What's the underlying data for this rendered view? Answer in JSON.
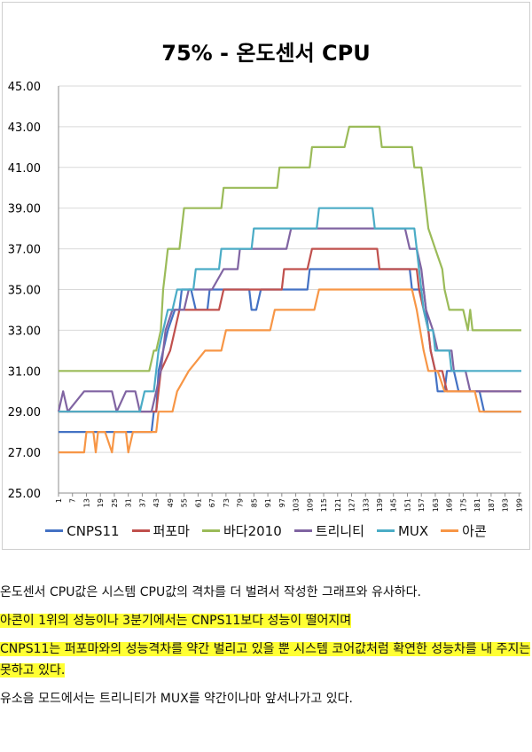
{
  "chart_data": {
    "type": "line",
    "title": "75% - 온도센서 CPU",
    "ylim": [
      25,
      45
    ],
    "y_ticks": [
      "25.00",
      "27.00",
      "29.00",
      "31.00",
      "33.00",
      "35.00",
      "37.00",
      "39.00",
      "41.00",
      "43.00",
      "45.00"
    ],
    "x_ticks": [
      "1",
      "7",
      "13",
      "19",
      "25",
      "31",
      "37",
      "43",
      "49",
      "55",
      "61",
      "67",
      "73",
      "79",
      "85",
      "91",
      "97",
      "103",
      "109",
      "115",
      "121",
      "127",
      "133",
      "139",
      "145",
      "151",
      "157",
      "163",
      "169",
      "175",
      "181",
      "187",
      "193",
      "199"
    ],
    "x_range": [
      1,
      200
    ],
    "grid": "horizontal",
    "legend_position": "bottom",
    "series": [
      {
        "name": "CNPS11",
        "color": "#4472c4",
        "points": [
          [
            1,
            28
          ],
          [
            41,
            28
          ],
          [
            42,
            29
          ],
          [
            43,
            29
          ],
          [
            44,
            31
          ],
          [
            46,
            32
          ],
          [
            48,
            33
          ],
          [
            51,
            34
          ],
          [
            53,
            34
          ],
          [
            54,
            35
          ],
          [
            58,
            35
          ],
          [
            60,
            34
          ],
          [
            65,
            34
          ],
          [
            66,
            35
          ],
          [
            83,
            35
          ],
          [
            84,
            34
          ],
          [
            86,
            34
          ],
          [
            88,
            35
          ],
          [
            108,
            35
          ],
          [
            109,
            36
          ],
          [
            152,
            36
          ],
          [
            153,
            35
          ],
          [
            158,
            35
          ],
          [
            160,
            33
          ],
          [
            161,
            32
          ],
          [
            163,
            31
          ],
          [
            164,
            30
          ],
          [
            167,
            30
          ],
          [
            168,
            31
          ],
          [
            171,
            31
          ],
          [
            173,
            30
          ],
          [
            175,
            30
          ],
          [
            182,
            30
          ],
          [
            184,
            29
          ],
          [
            200,
            29
          ]
        ]
      },
      {
        "name": "퍼포마",
        "color": "#c0504d",
        "points": [
          [
            1,
            29
          ],
          [
            40,
            29
          ],
          [
            41,
            29
          ],
          [
            43,
            29
          ],
          [
            45,
            31
          ],
          [
            49,
            32
          ],
          [
            51,
            33
          ],
          [
            53,
            34
          ],
          [
            70,
            34
          ],
          [
            72,
            35
          ],
          [
            97,
            35
          ],
          [
            98,
            36
          ],
          [
            108,
            36
          ],
          [
            110,
            37
          ],
          [
            138,
            37
          ],
          [
            139,
            36
          ],
          [
            150,
            36
          ],
          [
            151,
            36
          ],
          [
            155,
            36
          ],
          [
            156,
            35
          ],
          [
            158,
            34
          ],
          [
            160,
            33
          ],
          [
            161,
            32
          ],
          [
            163,
            31
          ],
          [
            166,
            31
          ],
          [
            168,
            30
          ],
          [
            200,
            30
          ]
        ]
      },
      {
        "name": "바다2010",
        "color": "#9bbb59",
        "points": [
          [
            1,
            31
          ],
          [
            40,
            31
          ],
          [
            42,
            32
          ],
          [
            43,
            32
          ],
          [
            45,
            33
          ],
          [
            46,
            35
          ],
          [
            47,
            36
          ],
          [
            48,
            37
          ],
          [
            50,
            37
          ],
          [
            53,
            37
          ],
          [
            54,
            38
          ],
          [
            55,
            39
          ],
          [
            57,
            39
          ],
          [
            58,
            39
          ],
          [
            65,
            39
          ],
          [
            71,
            39
          ],
          [
            72,
            40
          ],
          [
            95,
            40
          ],
          [
            96,
            41
          ],
          [
            109,
            41
          ],
          [
            110,
            42
          ],
          [
            124,
            42
          ],
          [
            126,
            43
          ],
          [
            139,
            43
          ],
          [
            140,
            42
          ],
          [
            153,
            42
          ],
          [
            154,
            41
          ],
          [
            157,
            41
          ],
          [
            158,
            40
          ],
          [
            159,
            39
          ],
          [
            160,
            38
          ],
          [
            163,
            37
          ],
          [
            166,
            36
          ],
          [
            167,
            35
          ],
          [
            169,
            34
          ],
          [
            175,
            34
          ],
          [
            177,
            33
          ],
          [
            178,
            34
          ],
          [
            179,
            33
          ],
          [
            200,
            33
          ]
        ]
      },
      {
        "name": "트리니티",
        "color": "#8064a2",
        "points": [
          [
            1,
            29
          ],
          [
            3,
            30
          ],
          [
            5,
            29
          ],
          [
            12,
            30
          ],
          [
            24,
            30
          ],
          [
            26,
            29
          ],
          [
            30,
            30
          ],
          [
            34,
            30
          ],
          [
            36,
            29
          ],
          [
            41,
            29
          ],
          [
            43,
            30
          ],
          [
            45,
            31
          ],
          [
            47,
            33
          ],
          [
            50,
            34
          ],
          [
            55,
            34
          ],
          [
            57,
            35
          ],
          [
            67,
            35
          ],
          [
            72,
            36
          ],
          [
            78,
            36
          ],
          [
            79,
            37
          ],
          [
            99,
            37
          ],
          [
            101,
            38
          ],
          [
            150,
            38
          ],
          [
            152,
            37
          ],
          [
            155,
            37
          ],
          [
            157,
            36
          ],
          [
            159,
            34
          ],
          [
            162,
            33
          ],
          [
            164,
            32
          ],
          [
            170,
            32
          ],
          [
            171,
            31
          ],
          [
            176,
            31
          ],
          [
            178,
            30
          ],
          [
            200,
            30
          ]
        ]
      },
      {
        "name": "MUX",
        "color": "#4bacc6",
        "points": [
          [
            1,
            29
          ],
          [
            36,
            29
          ],
          [
            38,
            30
          ],
          [
            42,
            30
          ],
          [
            44,
            32
          ],
          [
            46,
            33
          ],
          [
            48,
            34
          ],
          [
            50,
            34
          ],
          [
            52,
            35
          ],
          [
            59,
            35
          ],
          [
            60,
            36
          ],
          [
            70,
            36
          ],
          [
            71,
            37
          ],
          [
            84,
            37
          ],
          [
            85,
            38
          ],
          [
            101,
            38
          ],
          [
            102,
            38
          ],
          [
            112,
            38
          ],
          [
            113,
            39
          ],
          [
            136,
            39
          ],
          [
            137,
            38
          ],
          [
            154,
            38
          ],
          [
            155,
            37
          ],
          [
            157,
            35
          ],
          [
            158,
            34
          ],
          [
            160,
            33
          ],
          [
            162,
            33
          ],
          [
            163,
            32
          ],
          [
            169,
            32
          ],
          [
            170,
            31
          ],
          [
            182,
            31
          ],
          [
            184,
            31
          ],
          [
            200,
            31
          ]
        ]
      },
      {
        "name": "아콘",
        "color": "#f79646",
        "points": [
          [
            1,
            27
          ],
          [
            12,
            27
          ],
          [
            13,
            28
          ],
          [
            16,
            28
          ],
          [
            17,
            27
          ],
          [
            18,
            28
          ],
          [
            21,
            28
          ],
          [
            24,
            27
          ],
          [
            25,
            28
          ],
          [
            30,
            28
          ],
          [
            31,
            27
          ],
          [
            33,
            28
          ],
          [
            43,
            28
          ],
          [
            44,
            29
          ],
          [
            50,
            29
          ],
          [
            52,
            30
          ],
          [
            57,
            31
          ],
          [
            64,
            32
          ],
          [
            71,
            32
          ],
          [
            73,
            33
          ],
          [
            92,
            33
          ],
          [
            94,
            34
          ],
          [
            111,
            34
          ],
          [
            113,
            35
          ],
          [
            153,
            35
          ],
          [
            155,
            34
          ],
          [
            158,
            32
          ],
          [
            160,
            31
          ],
          [
            164,
            31
          ],
          [
            167,
            30
          ],
          [
            180,
            30
          ],
          [
            182,
            29
          ],
          [
            200,
            29
          ]
        ]
      }
    ]
  },
  "paragraphs": [
    {
      "text": "온도센서 CPU값은 시스템 CPU값의 격차를 더 벌려서 작성한 그래프와 유사하다.",
      "highlight": false
    },
    {
      "text": "아콘이 1위의 성능이나 3분기에서는 CNPS11보다 성능이 떨어지며",
      "highlight": true
    },
    {
      "text": "CNPS11는 퍼포마와의 성능격차를 약간 벌리고 있을 뿐 시스템 코어값처럼 확연한 성능차를 내 주지는 못하고 있다.",
      "highlight": true
    },
    {
      "text": "유소음 모드에서는 트리니티가 MUX를 약간이나마 앞서나가고 있다.",
      "highlight": false
    }
  ]
}
